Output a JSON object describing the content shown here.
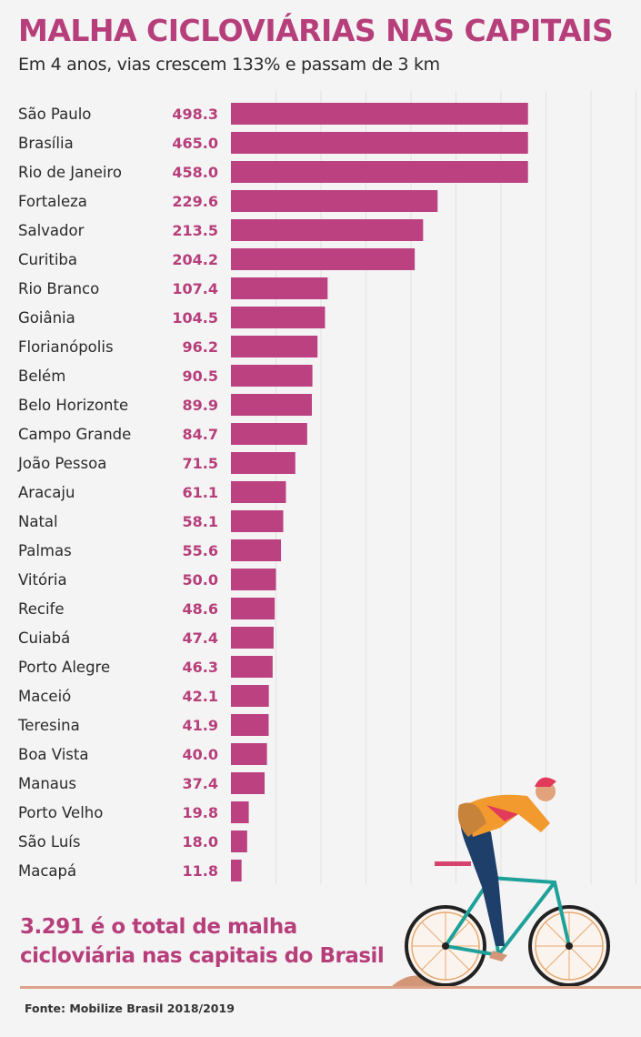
{
  "chart_data": {
    "type": "bar",
    "orientation": "horizontal",
    "title": "MALHA CICLOVIÁRIAS NAS CAPITAIS",
    "subtitle": "Em 4 anos, vias crescem 133% e passam de 3 km",
    "xlabel": "",
    "ylabel": "",
    "xlim": [
      0,
      450
    ],
    "grid": true,
    "bar_color": "#bb4180",
    "categories": [
      "São Paulo",
      "Brasília",
      "Rio de Janeiro",
      "Fortaleza",
      "Salvador",
      "Curitiba",
      "Rio Branco",
      "Goiânia",
      "Florianópolis",
      "Belém",
      "Belo Horizonte",
      "Campo Grande",
      "João Pessoa",
      "Aracaju",
      "Natal",
      "Palmas",
      "Vitória",
      "Recife",
      "Cuiabá",
      "Porto Alegre",
      "Maceió",
      "Teresina",
      "Boa Vista",
      "Manaus",
      "Porto Velho",
      "São Luís",
      "Macapá"
    ],
    "values": [
      498.3,
      465.0,
      458.0,
      229.6,
      213.5,
      204.2,
      107.4,
      104.5,
      96.2,
      90.5,
      89.9,
      84.7,
      71.5,
      61.1,
      58.1,
      55.6,
      50.0,
      48.6,
      47.4,
      46.3,
      42.1,
      41.9,
      40.0,
      37.4,
      19.8,
      18.0,
      11.8
    ],
    "value_labels": [
      "498.3",
      "465.0",
      "458.0",
      "229.6",
      "213.5",
      "204.2",
      "107.4",
      "104.5",
      "96.2",
      "90.5",
      "89.9",
      "84.7",
      "71.5",
      "61.1",
      "58.1",
      "55.6",
      "50.0",
      "48.6",
      "47.4",
      "46.3",
      "42.1",
      "41.9",
      "40.0",
      "37.4",
      "19.8",
      "18.0",
      "11.8"
    ]
  },
  "total_text_line1": "3.291 é o total de malha",
  "total_text_line2": "cicloviária nas capitais do Brasil",
  "source": "Fonte: Mobilize Brasil 2018/2019",
  "colors": {
    "accent": "#b63f7b",
    "background": "#f5f4f4",
    "ground": "#dba38a"
  }
}
